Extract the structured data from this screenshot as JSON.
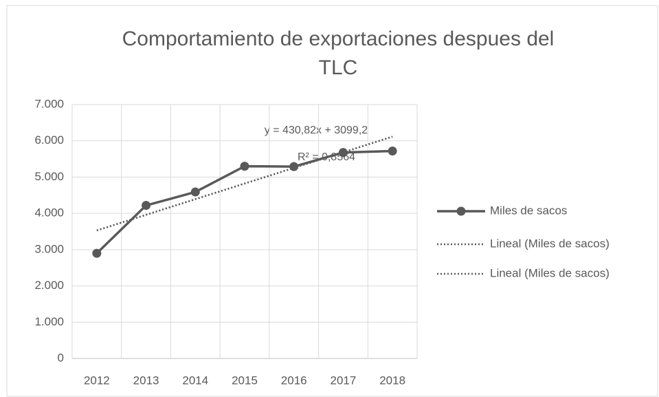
{
  "chart_data": {
    "type": "line",
    "title": [
      "Comportamiento de exportaciones despues del",
      "TLC"
    ],
    "categories": [
      "2012",
      "2013",
      "2014",
      "2015",
      "2016",
      "2017",
      "2018"
    ],
    "series": [
      {
        "name": "Miles de sacos",
        "color": "#595959",
        "style": "solid",
        "marker": "circle",
        "values": [
          2900,
          4220,
          4590,
          5300,
          5290,
          5680,
          5720
        ]
      },
      {
        "name": "Lineal (Miles de sacos)",
        "color": "#595959",
        "style": "dotted",
        "values": [
          3530,
          3961,
          4392,
          4823,
          5254,
          5685,
          6115
        ]
      },
      {
        "name": "Lineal (Miles de sacos)",
        "color": "#595959",
        "style": "dotted",
        "values": [
          3530,
          3961,
          4392,
          4823,
          5254,
          5685,
          6115
        ]
      }
    ],
    "annotations": [
      "y = 430,82x + 3099,2",
      "R² = 0,8564"
    ],
    "ylim": [
      0,
      7000
    ],
    "yticks": [
      0,
      {
        "value": 1000,
        "label": "1.000"
      },
      {
        "value": 2000,
        "label": "2.000"
      },
      {
        "value": 3000,
        "label": "3.000"
      },
      {
        "value": 4000,
        "label": "4.000"
      },
      {
        "value": 5000,
        "label": "5.000"
      },
      {
        "value": 6000,
        "label": "6.000"
      },
      {
        "value": 7000,
        "label": "7.000"
      }
    ],
    "grid": true,
    "legend": "right"
  }
}
